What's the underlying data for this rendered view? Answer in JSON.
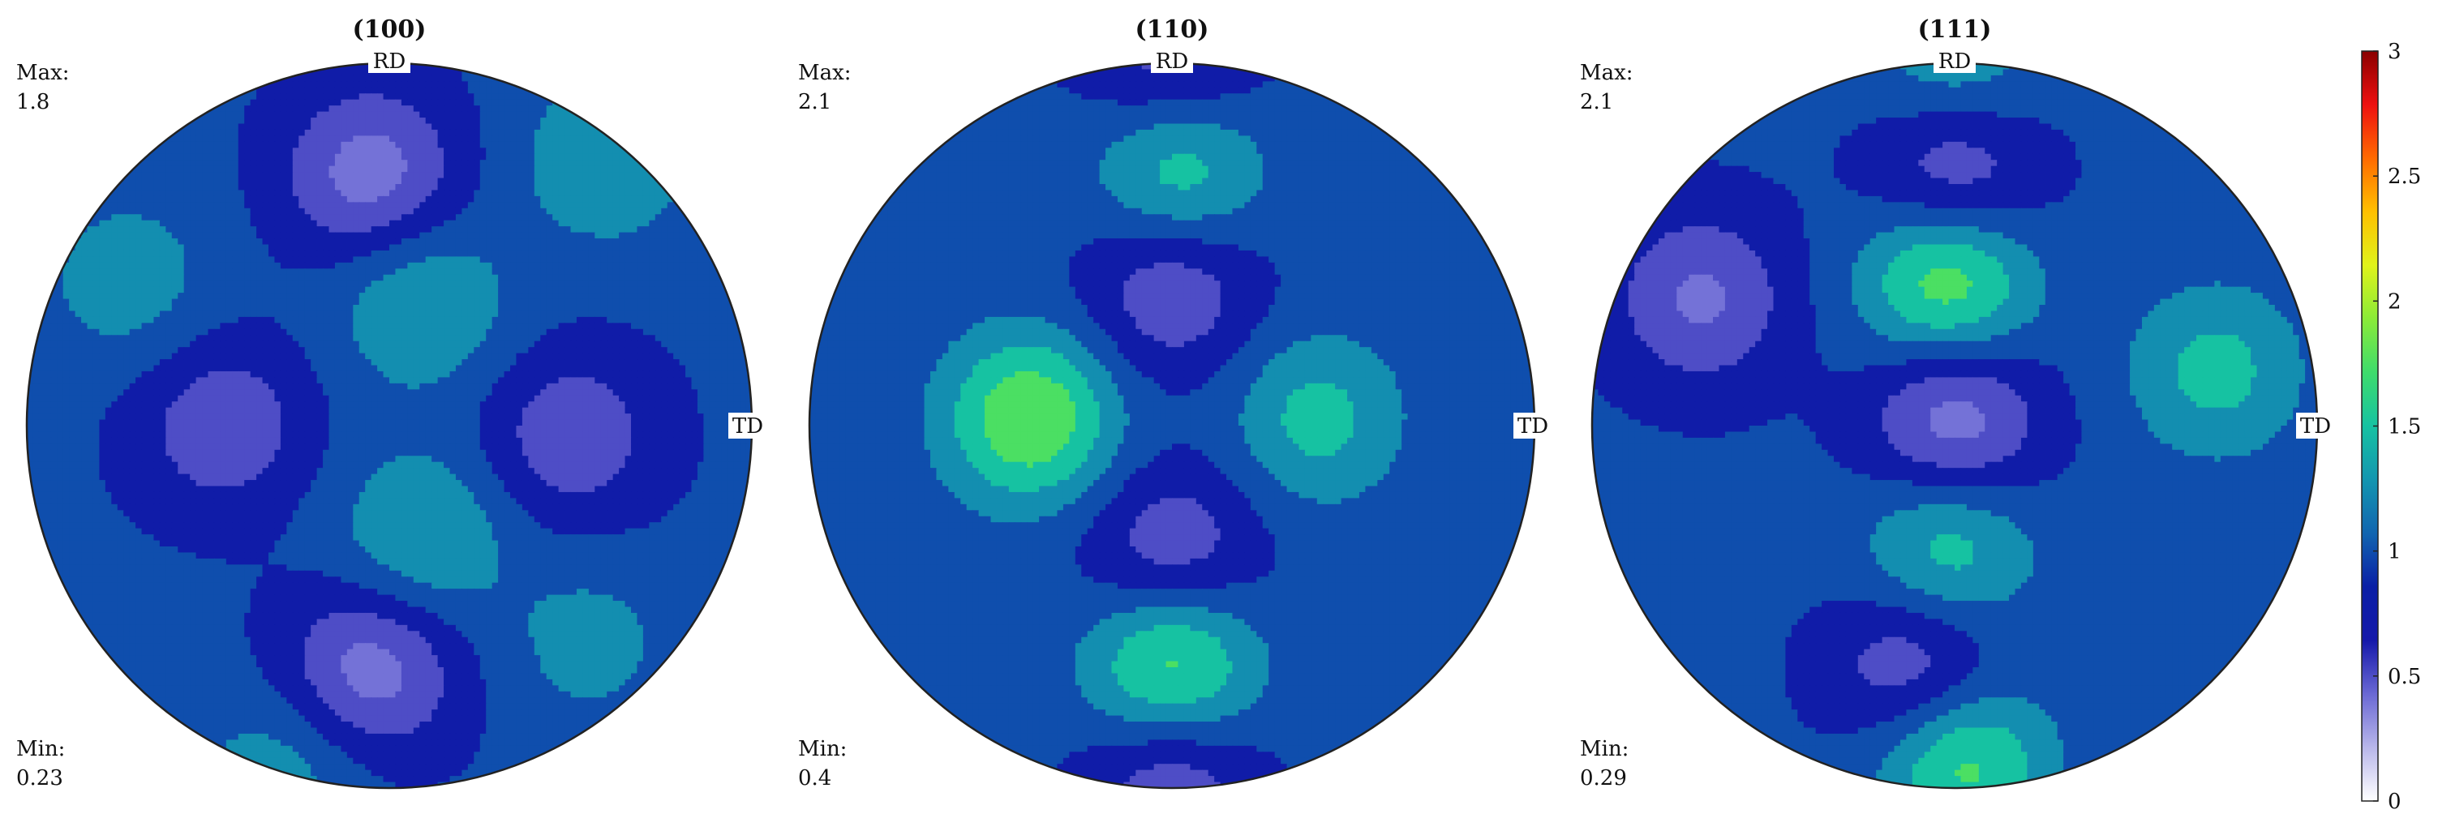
{
  "chart_data": [
    {
      "type": "heatmap",
      "title": "(100)",
      "max_label": "Max:",
      "max_value": "1.8",
      "min_label": "Min:",
      "min_value": "0.23",
      "rd_label": "RD",
      "td_label": "TD",
      "peaks": [
        {
          "x": -0.05,
          "y": 0.69,
          "v": 0.35
        },
        {
          "x": 0.09,
          "y": 0.34,
          "v": 1.55
        },
        {
          "x": 0.09,
          "y": -0.31,
          "v": 1.55
        },
        {
          "x": -0.05,
          "y": -0.67,
          "v": 0.35
        },
        {
          "x": -0.46,
          "y": 0.0,
          "v": 0.55
        },
        {
          "x": 0.5,
          "y": -0.03,
          "v": 0.55
        },
        {
          "x": -0.72,
          "y": 0.4,
          "v": 1.4
        },
        {
          "x": 0.6,
          "y": 0.74,
          "v": 1.5
        },
        {
          "x": 0.55,
          "y": -0.6,
          "v": 1.35
        },
        {
          "x": -0.3,
          "y": -0.95,
          "v": 1.4
        }
      ]
    },
    {
      "type": "heatmap",
      "title": "(110)",
      "max_label": "Max:",
      "max_value": "2.1",
      "min_label": "Min:",
      "min_value": "0.4",
      "rd_label": "RD",
      "td_label": "TD",
      "peaks": [
        {
          "x": 0.02,
          "y": 0.71,
          "v": 1.75
        },
        {
          "x": -0.39,
          "y": 0.02,
          "v": 2.0
        },
        {
          "x": 0.4,
          "y": 0.02,
          "v": 1.6
        },
        {
          "x": 0.0,
          "y": -0.66,
          "v": 1.95
        },
        {
          "x": 0.0,
          "y": 0.38,
          "v": 0.5
        },
        {
          "x": 0.0,
          "y": -0.35,
          "v": 0.5
        },
        {
          "x": 0.0,
          "y": -0.98,
          "v": 0.5
        },
        {
          "x": 0.0,
          "y": 0.99,
          "v": 0.55
        }
      ]
    },
    {
      "type": "heatmap",
      "title": "(111)",
      "max_label": "Max:",
      "max_value": "2.1",
      "min_label": "Min:",
      "min_value": "0.29",
      "rd_label": "RD",
      "td_label": "TD",
      "peaks": [
        {
          "x": 0.0,
          "y": 0.02,
          "v": 0.3
        },
        {
          "x": 0.0,
          "y": 0.7,
          "v": 0.4
        },
        {
          "x": -0.1,
          "y": -0.67,
          "v": 0.4
        },
        {
          "x": -0.02,
          "y": 0.4,
          "v": 2.0
        },
        {
          "x": -0.02,
          "y": -0.35,
          "v": 1.7
        },
        {
          "x": 0.72,
          "y": 0.15,
          "v": 1.6
        },
        {
          "x": 0.02,
          "y": -0.92,
          "v": 1.9
        },
        {
          "x": 0.0,
          "y": 0.99,
          "v": 1.5
        },
        {
          "x": -0.7,
          "y": 0.35,
          "v": 0.45
        }
      ]
    }
  ],
  "colorbar": {
    "range": [
      0,
      3
    ],
    "tick_labels": [
      "3",
      "2.5",
      "2",
      "1.5",
      "1",
      "0.5",
      "0"
    ],
    "tick_values": [
      3,
      2.5,
      2,
      1.5,
      1,
      0.5,
      0
    ]
  },
  "contour_levels": [
    0.5,
    0.75,
    1.0,
    1.25,
    1.5,
    1.75,
    2.0
  ],
  "colors": {
    "colormap": [
      "#ffffff",
      "#b8b6ea",
      "#6a68d4",
      "#1518aa",
      "#0a1fa6",
      "#1165b0",
      "#1396b0",
      "#16c2a2",
      "#3edc6c",
      "#8aeb38",
      "#e0f31a",
      "#ffc000",
      "#ff6a00",
      "#ee1010",
      "#8a0000"
    ],
    "outline": "#222222"
  }
}
